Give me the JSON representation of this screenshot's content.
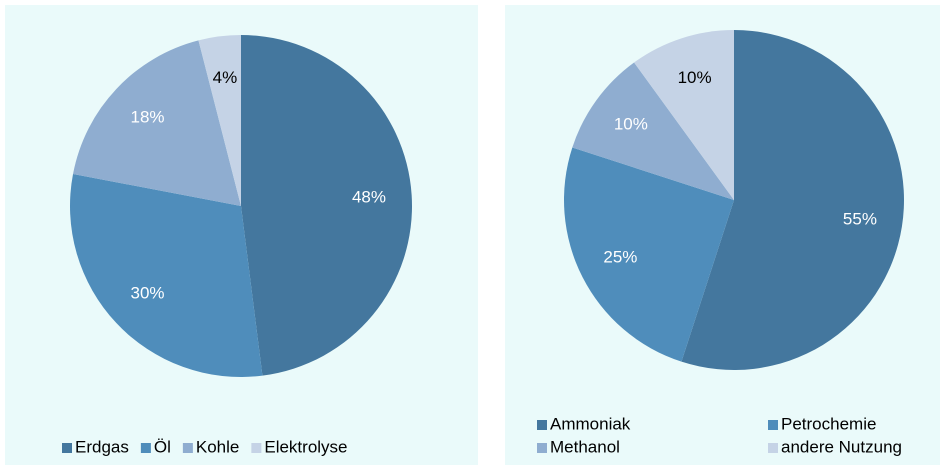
{
  "chart_data": [
    {
      "type": "pie",
      "categories": [
        "Erdgas",
        "Öl",
        "Kohle",
        "Elektrolyse"
      ],
      "values": [
        48,
        30,
        18,
        4
      ],
      "value_labels": [
        "48%",
        "30%",
        "18%",
        "4%"
      ],
      "colors": [
        "#44779e",
        "#4f8dbb",
        "#8fadd0",
        "#c5d3e6"
      ],
      "label_colors": [
        "#ffffff",
        "#ffffff",
        "#ffffff",
        "#000000"
      ]
    },
    {
      "type": "pie",
      "categories": [
        "Ammoniak",
        "Petrochemie",
        "Methanol",
        "andere Nutzung"
      ],
      "values": [
        55,
        25,
        10,
        10
      ],
      "value_labels": [
        "55%",
        "25%",
        "10%",
        "10%"
      ],
      "colors": [
        "#44779e",
        "#4f8dbb",
        "#8fadd0",
        "#c5d3e6"
      ],
      "label_colors": [
        "#ffffff",
        "#ffffff",
        "#ffffff",
        "#000000"
      ]
    }
  ]
}
